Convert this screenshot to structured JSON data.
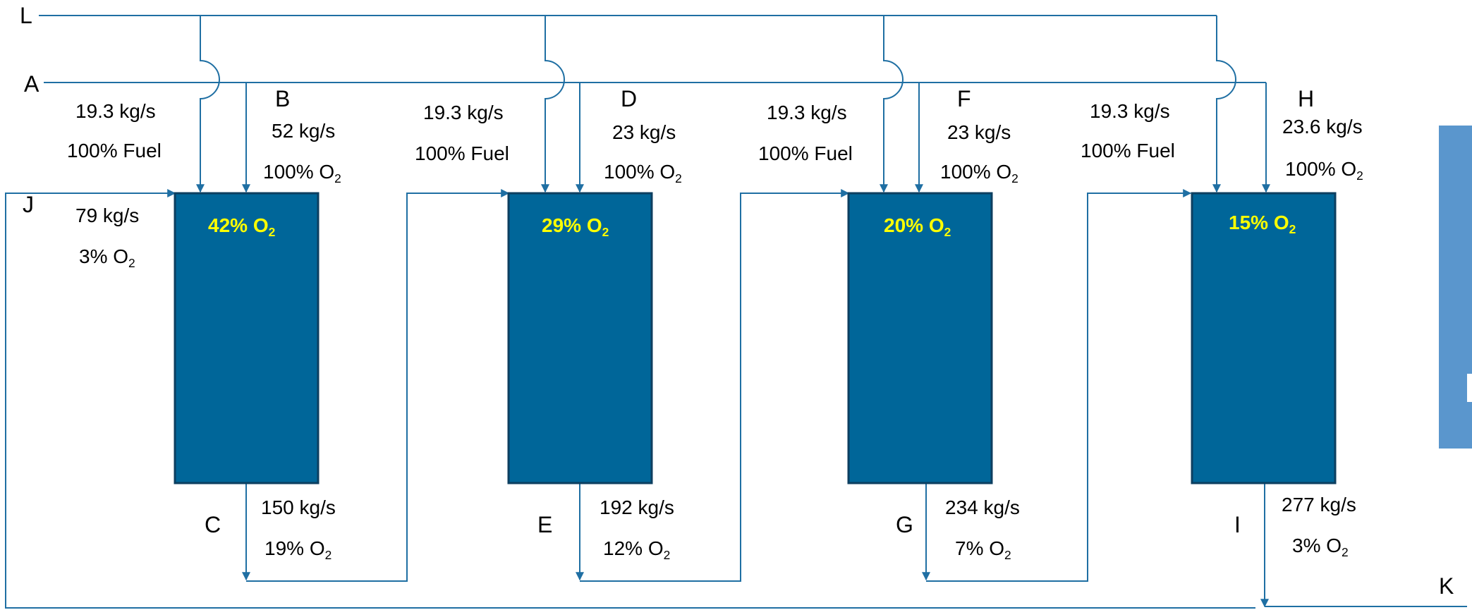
{
  "nodes": {
    "L": "L",
    "A": "A",
    "B": "B",
    "C": "C",
    "D": "D",
    "E": "E",
    "F": "F",
    "G": "G",
    "H": "H",
    "I": "I",
    "J": "J",
    "K": "K"
  },
  "stage1": {
    "fuel_flow": "19.3 kg/s",
    "fuel_comp": "100% Fuel",
    "o2_flow": "52 kg/s",
    "o2_comp_pre": "100% O",
    "o2_comp_sub": "2",
    "tank_pre": "42% O",
    "tank_sub": "2",
    "out_flow": "150 kg/s",
    "out_comp_pre": "19% O",
    "out_comp_sub": "2"
  },
  "recycle": {
    "flow": "79 kg/s",
    "comp_pre": "3% O",
    "comp_sub": "2"
  },
  "stage2": {
    "fuel_flow": "19.3 kg/s",
    "fuel_comp": "100% Fuel",
    "o2_flow": "23 kg/s",
    "o2_comp_pre": "100% O",
    "o2_comp_sub": "2",
    "tank_pre": "29% O",
    "tank_sub": "2",
    "out_flow": "192 kg/s",
    "out_comp_pre": "12% O",
    "out_comp_sub": "2"
  },
  "stage3": {
    "fuel_flow": "19.3 kg/s",
    "fuel_comp": "100% Fuel",
    "o2_flow": "23 kg/s",
    "o2_comp_pre": "100% O",
    "o2_comp_sub": "2",
    "tank_pre": "20% O",
    "tank_sub": "2",
    "out_flow": "234 kg/s",
    "out_comp_pre": "7% O",
    "out_comp_sub": "2"
  },
  "stage4": {
    "fuel_flow": "19.3 kg/s",
    "fuel_comp": "100% Fuel",
    "o2_flow": "23.6 kg/s",
    "o2_comp_pre": "100% O",
    "o2_comp_sub": "2",
    "tank_pre": "15% O",
    "tank_sub": "2",
    "out_flow": "277 kg/s",
    "out_comp_pre": "3% O",
    "out_comp_sub": "2"
  },
  "colors": {
    "line": "#1f6fa3",
    "tank_fill": "#006699",
    "tank_border": "#0d3f60",
    "tank_text": "#ffff00",
    "side_panel": "#5a96cd"
  }
}
